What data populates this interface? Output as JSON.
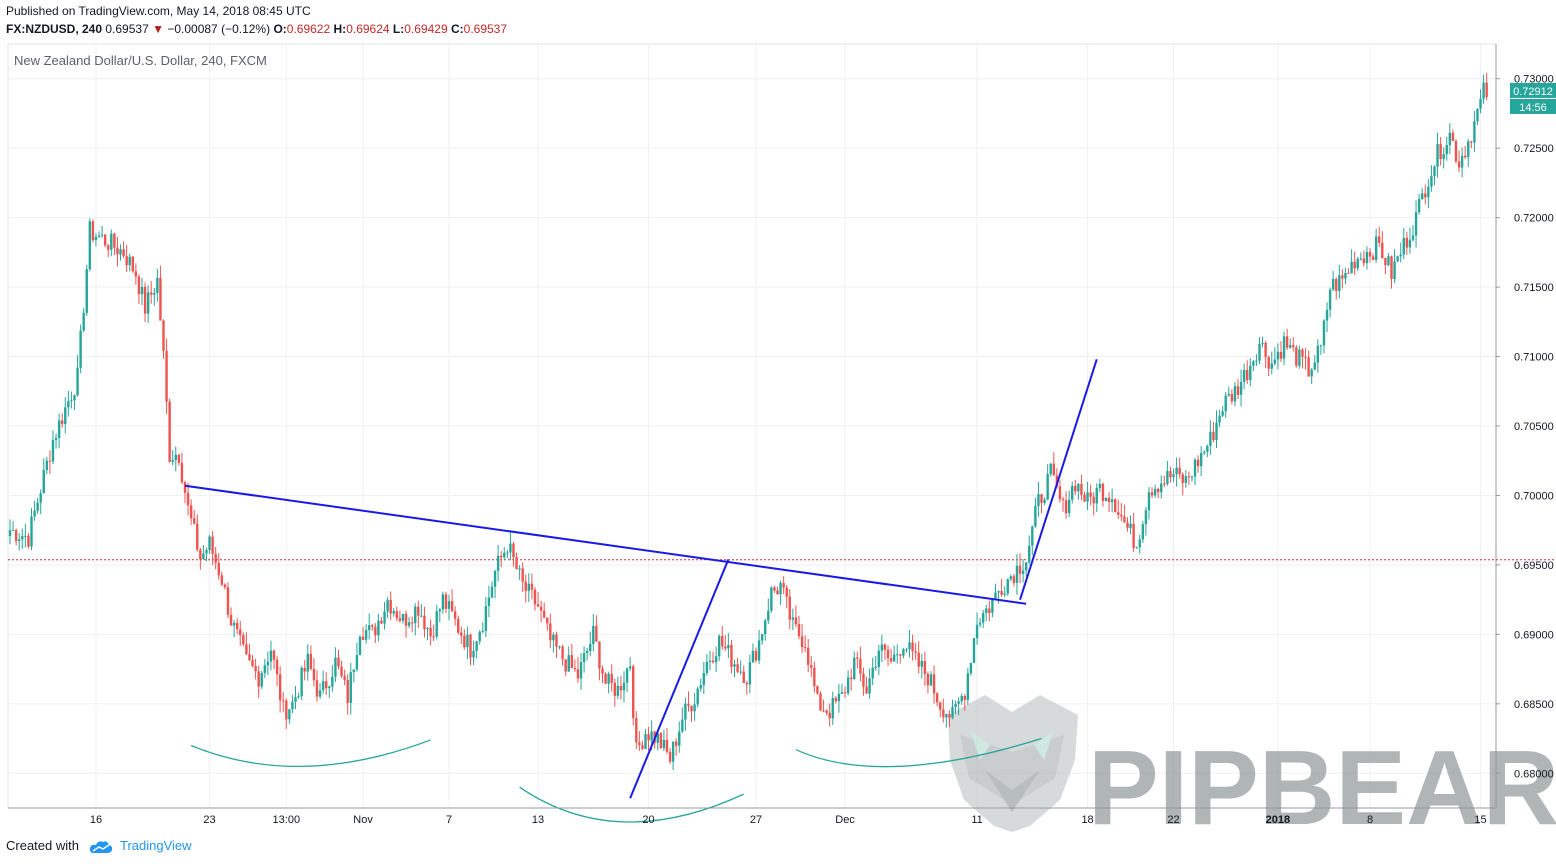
{
  "header": {
    "published": "Published on TradingView.com, May 14, 2018 08:45 UTC",
    "symbol": "FX:NZDUSD, 240",
    "last": "0.69537",
    "arrow": "▼",
    "change": "−0.00087 (−0.12%)",
    "o_label": "O:",
    "o_value": "0.69622",
    "h_label": "H:",
    "h_value": "0.69624",
    "l_label": "L:",
    "l_value": "0.69429",
    "c_label": "C:",
    "c_value": "0.69537"
  },
  "footer": {
    "created_with": "Created with",
    "brand": "TradingView"
  },
  "watermark": "PIPBEAR",
  "colors": {
    "up": "#26a69a",
    "down": "#ef5350",
    "trendline": "#1a1ae6",
    "curve": "#26a69a",
    "price_tag": "#26a69a"
  },
  "chart_data": {
    "type": "candlestick",
    "title": "New Zealand Dollar/U.S. Dollar, 240, FXCM",
    "ylim": [
      0.6775,
      0.7325
    ],
    "y_ticks": [
      "0.68000",
      "0.68500",
      "0.69000",
      "0.69500",
      "0.70000",
      "0.70500",
      "0.71000",
      "0.71500",
      "0.72000",
      "0.72500",
      "0.73000"
    ],
    "x_ticks": [
      {
        "label": "16",
        "idx": 28
      },
      {
        "label": "23",
        "idx": 65
      },
      {
        "label": "13:00",
        "idx": 90
      },
      {
        "label": "Nov",
        "idx": 115
      },
      {
        "label": "7",
        "idx": 143
      },
      {
        "label": "13",
        "idx": 172
      },
      {
        "label": "20",
        "idx": 208
      },
      {
        "label": "27",
        "idx": 243
      },
      {
        "label": "Dec",
        "idx": 272
      },
      {
        "label": "11",
        "idx": 315
      },
      {
        "label": "18",
        "idx": 351
      },
      {
        "label": "22",
        "idx": 379
      },
      {
        "label": "2018",
        "idx": 413
      },
      {
        "label": "8",
        "idx": 443
      },
      {
        "label": "15",
        "idx": 479
      }
    ],
    "current_price": "0.72912",
    "countdown": "14:56",
    "reference_price": 0.69537,
    "series": [
      {
        "name": "NZDUSD",
        "anchors": [
          [
            0,
            0.6975
          ],
          [
            6,
            0.697
          ],
          [
            14,
            0.704
          ],
          [
            22,
            0.7085
          ],
          [
            26,
            0.719
          ],
          [
            30,
            0.7185
          ],
          [
            37,
            0.7175
          ],
          [
            41,
            0.716
          ],
          [
            44,
            0.7135
          ],
          [
            48,
            0.7155
          ],
          [
            50,
            0.71
          ],
          [
            52,
            0.703
          ],
          [
            55,
            0.703
          ],
          [
            58,
            0.699
          ],
          [
            62,
            0.6955
          ],
          [
            65,
            0.6965
          ],
          [
            69,
            0.694
          ],
          [
            72,
            0.691
          ],
          [
            77,
            0.688
          ],
          [
            81,
            0.687
          ],
          [
            85,
            0.689
          ],
          [
            89,
            0.6845
          ],
          [
            92,
            0.685
          ],
          [
            97,
            0.688
          ],
          [
            101,
            0.6855
          ],
          [
            106,
            0.688
          ],
          [
            110,
            0.6855
          ],
          [
            114,
            0.6905
          ],
          [
            118,
            0.69
          ],
          [
            123,
            0.6925
          ],
          [
            128,
            0.691
          ],
          [
            133,
            0.692
          ],
          [
            137,
            0.69
          ],
          [
            141,
            0.6925
          ],
          [
            146,
            0.6905
          ],
          [
            150,
            0.689
          ],
          [
            154,
            0.691
          ],
          [
            158,
            0.6945
          ],
          [
            162,
            0.6965
          ],
          [
            167,
            0.6935
          ],
          [
            172,
            0.692
          ],
          [
            176,
            0.6895
          ],
          [
            181,
            0.688
          ],
          [
            185,
            0.687
          ],
          [
            190,
            0.69
          ],
          [
            194,
            0.6865
          ],
          [
            198,
            0.686
          ],
          [
            202,
            0.688
          ],
          [
            204,
            0.6815
          ],
          [
            207,
            0.683
          ],
          [
            211,
            0.6825
          ],
          [
            215,
            0.681
          ],
          [
            219,
            0.684
          ],
          [
            223,
            0.6855
          ],
          [
            227,
            0.688
          ],
          [
            231,
            0.6895
          ],
          [
            236,
            0.688
          ],
          [
            240,
            0.687
          ],
          [
            244,
            0.6895
          ],
          [
            248,
            0.693
          ],
          [
            251,
            0.6935
          ],
          [
            255,
            0.6905
          ],
          [
            259,
            0.6895
          ],
          [
            263,
            0.685
          ],
          [
            267,
            0.6845
          ],
          [
            271,
            0.6855
          ],
          [
            275,
            0.688
          ],
          [
            279,
            0.686
          ],
          [
            283,
            0.689
          ],
          [
            287,
            0.688
          ],
          [
            291,
            0.6895
          ],
          [
            295,
            0.688
          ],
          [
            299,
            0.687
          ],
          [
            303,
            0.685
          ],
          [
            307,
            0.684
          ],
          [
            311,
            0.686
          ],
          [
            315,
            0.691
          ],
          [
            319,
            0.692
          ],
          [
            323,
            0.6935
          ],
          [
            327,
            0.6945
          ],
          [
            331,
            0.6955
          ],
          [
            335,
            0.6995
          ],
          [
            339,
            0.7015
          ],
          [
            343,
            0.699
          ],
          [
            347,
            0.701
          ],
          [
            351,
            0.6995
          ],
          [
            355,
            0.7005
          ],
          [
            359,
            0.7
          ],
          [
            363,
            0.698
          ],
          [
            367,
            0.6965
          ],
          [
            371,
            0.7005
          ],
          [
            375,
            0.701
          ],
          [
            379,
            0.7015
          ],
          [
            383,
            0.701
          ],
          [
            387,
            0.7025
          ],
          [
            391,
            0.704
          ],
          [
            395,
            0.7065
          ],
          [
            399,
            0.7075
          ],
          [
            403,
            0.709
          ],
          [
            407,
            0.711
          ],
          [
            411,
            0.7095
          ],
          [
            415,
            0.711
          ],
          [
            419,
            0.71
          ],
          [
            423,
            0.709
          ],
          [
            427,
            0.7105
          ],
          [
            430,
            0.715
          ],
          [
            434,
            0.7155
          ],
          [
            438,
            0.717
          ],
          [
            442,
            0.7175
          ],
          [
            446,
            0.718
          ],
          [
            450,
            0.716
          ],
          [
            454,
            0.718
          ],
          [
            458,
            0.72
          ],
          [
            462,
            0.723
          ],
          [
            466,
            0.725
          ],
          [
            469,
            0.726
          ],
          [
            472,
            0.724
          ],
          [
            475,
            0.7255
          ],
          [
            478,
            0.7275
          ],
          [
            480,
            0.729
          ]
        ]
      }
    ],
    "trendlines": [
      {
        "from": [
          57,
          0.7007
        ],
        "to": [
          331,
          0.6922
        ]
      },
      {
        "from": [
          202,
          0.6782
        ],
        "to": [
          234,
          0.6954
        ]
      },
      {
        "from": [
          329,
          0.6925
        ],
        "to": [
          354,
          0.7098
        ]
      }
    ],
    "arcs": [
      {
        "from": [
          59,
          0.682
        ],
        "mid": [
          96,
          0.6805
        ],
        "to": [
          137,
          0.6824
        ]
      },
      {
        "from": [
          166,
          0.679
        ],
        "mid": [
          200,
          0.6765
        ],
        "to": [
          239,
          0.6785
        ]
      },
      {
        "from": [
          256,
          0.6817
        ],
        "mid": [
          290,
          0.6805
        ],
        "to": [
          336,
          0.6825
        ]
      }
    ]
  }
}
